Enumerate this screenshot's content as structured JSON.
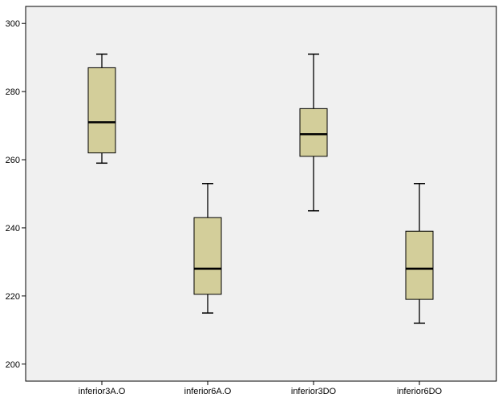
{
  "colors": {
    "plot_background": "#f0f0f0",
    "box_fill": "#d3ce9a",
    "stroke": "#000000"
  },
  "chart_data": {
    "type": "boxplot",
    "title": "",
    "xlabel": "",
    "ylabel": "",
    "ylim": [
      195,
      305
    ],
    "yticks": [
      200,
      220,
      240,
      260,
      280,
      300
    ],
    "categories": [
      "inferior3A.O",
      "inferior6A.O",
      "inferior3DO",
      "inferior6DO"
    ],
    "boxes": [
      {
        "category": "inferior3A.O",
        "whisker_low": 259,
        "q1": 262,
        "median": 271,
        "q3": 287,
        "whisker_high": 291
      },
      {
        "category": "inferior6A.O",
        "whisker_low": 215,
        "q1": 220.5,
        "median": 228,
        "q3": 243,
        "whisker_high": 253
      },
      {
        "category": "inferior3DO",
        "whisker_low": 245,
        "q1": 261,
        "median": 267.5,
        "q3": 275,
        "whisker_high": 291
      },
      {
        "category": "inferior6DO",
        "whisker_low": 212,
        "q1": 219,
        "median": 228,
        "q3": 239,
        "whisker_high": 253
      }
    ],
    "grid": false,
    "legend": "none"
  }
}
